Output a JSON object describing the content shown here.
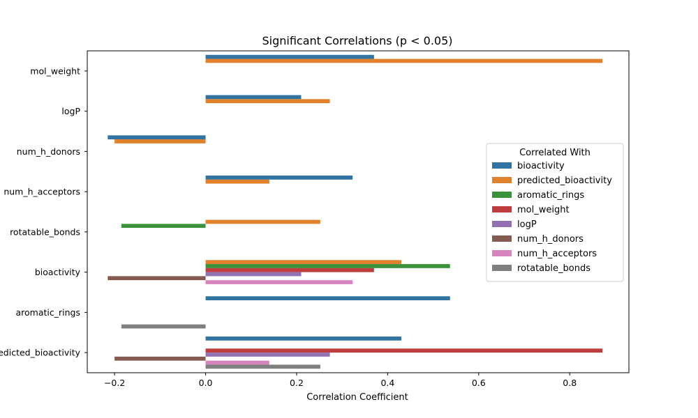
{
  "chart_data": {
    "type": "bar",
    "orientation": "horizontal",
    "title": "Significant Correlations (p < 0.05)",
    "xlabel": "Correlation Coefficient",
    "ylabel": "",
    "xlim": [
      -0.26,
      0.93
    ],
    "xticks": [
      -0.2,
      0.0,
      0.2,
      0.4,
      0.6,
      0.8
    ],
    "xtick_labels": [
      "−0.2",
      "0.0",
      "0.2",
      "0.4",
      "0.6",
      "0.8"
    ],
    "grid": false,
    "legend": {
      "title": "Correlated With",
      "placement": "right"
    },
    "categories": [
      "mol_weight",
      "logP",
      "num_h_donors",
      "num_h_acceptors",
      "rotatable_bonds",
      "bioactivity",
      "aromatic_rings",
      "predicted_bioactivity"
    ],
    "series": [
      {
        "name": "bioactivity",
        "color": "#3274a1",
        "values": [
          0.37,
          0.21,
          -0.215,
          0.323,
          null,
          null,
          0.537,
          0.43
        ]
      },
      {
        "name": "predicted_bioactivity",
        "color": "#e1812c",
        "values": [
          0.872,
          0.273,
          -0.2,
          0.14,
          0.252,
          0.43,
          null,
          null
        ]
      },
      {
        "name": "aromatic_rings",
        "color": "#3a923a",
        "values": [
          null,
          null,
          null,
          null,
          -0.185,
          0.537,
          null,
          null
        ]
      },
      {
        "name": "mol_weight",
        "color": "#c03d3e",
        "values": [
          null,
          null,
          null,
          null,
          null,
          0.37,
          null,
          0.872
        ]
      },
      {
        "name": "logP",
        "color": "#9372b2",
        "values": [
          null,
          null,
          null,
          null,
          null,
          0.21,
          null,
          0.273
        ]
      },
      {
        "name": "num_h_donors",
        "color": "#845b53",
        "values": [
          null,
          null,
          null,
          null,
          null,
          -0.215,
          null,
          -0.2
        ]
      },
      {
        "name": "num_h_acceptors",
        "color": "#d684bd",
        "values": [
          null,
          null,
          null,
          null,
          null,
          0.323,
          null,
          0.14
        ]
      },
      {
        "name": "rotatable_bonds",
        "color": "#7f7f7f",
        "values": [
          null,
          null,
          null,
          null,
          null,
          null,
          -0.185,
          0.252
        ]
      }
    ]
  }
}
